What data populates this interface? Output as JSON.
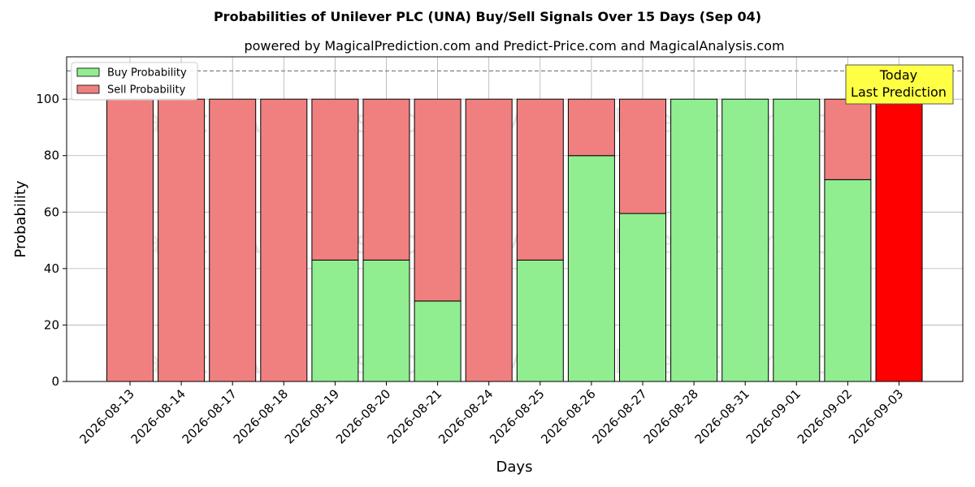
{
  "chart_data": {
    "type": "bar",
    "stacked": true,
    "title": "Probabilities of Unilever PLC (UNA) Buy/Sell Signals Over 15 Days (Sep 04)",
    "subtitle": "powered by MagicalPrediction.com and Predict-Price.com and MagicalAnalysis.com",
    "xlabel": "Days",
    "ylabel": "Probability",
    "ylim": [
      0,
      115
    ],
    "yticks": [
      0,
      20,
      40,
      60,
      80,
      100
    ],
    "grid": true,
    "legend_position": "top-left",
    "reference_line": 110,
    "categories": [
      "2026-08-13",
      "2026-08-14",
      "2026-08-17",
      "2026-08-18",
      "2026-08-19",
      "2026-08-20",
      "2026-08-21",
      "2026-08-24",
      "2026-08-25",
      "2026-08-26",
      "2026-08-27",
      "2026-08-28",
      "2026-08-31",
      "2026-09-01",
      "2026-09-02",
      "2026-09-03"
    ],
    "series": [
      {
        "name": "Buy Probability",
        "color": "#90ee90",
        "values": [
          0,
          0,
          0,
          0,
          43,
          43,
          28.5,
          0,
          43,
          80,
          59.5,
          100,
          100,
          100,
          71.5,
          0
        ]
      },
      {
        "name": "Sell Probability",
        "color": "#f08080",
        "values": [
          100,
          100,
          100,
          100,
          57,
          57,
          71.5,
          100,
          57,
          20,
          40.5,
          0,
          0,
          0,
          28.5,
          100
        ]
      }
    ],
    "highlight": {
      "index": 15,
      "color": "#ff0000"
    },
    "annotation": {
      "line1": "Today",
      "line2": "Last Prediction",
      "bg": "#ffff44"
    },
    "watermarks": [
      "MagicalAnalysis.com",
      "MagicalPrediction.com"
    ]
  }
}
